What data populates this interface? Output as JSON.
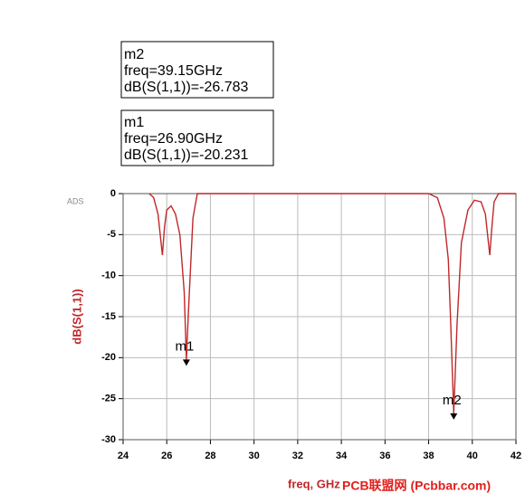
{
  "chart_data": {
    "type": "line",
    "corner_label": "ADS",
    "xlabel": "freq, GHz",
    "ylabel": "dB(S(1,1))",
    "watermark": "PCB联盟网 (Pcbbar.com)",
    "xlim": [
      24,
      42
    ],
    "xticks": [
      24,
      26,
      28,
      30,
      32,
      34,
      36,
      38,
      40,
      42
    ],
    "ylim": [
      -30,
      0
    ],
    "yticks": [
      0,
      -5,
      -10,
      -15,
      -20,
      -25,
      -30
    ],
    "grid": true,
    "series": [
      {
        "name": "dB(S(1,1))",
        "color": "#c0282a",
        "x": [
          25.2,
          25.4,
          25.6,
          25.8,
          25.9,
          26.0,
          26.2,
          26.4,
          26.6,
          26.8,
          26.9,
          27.0,
          27.2,
          27.4,
          28,
          30,
          32,
          34,
          36,
          38,
          38.4,
          38.7,
          38.9,
          39.0,
          39.15,
          39.3,
          39.5,
          39.8,
          40.1,
          40.4,
          40.6,
          40.8,
          40.9,
          41.0,
          41.2,
          42
        ],
        "values": [
          0,
          -0.5,
          -2.5,
          -7.5,
          -4,
          -2,
          -1.5,
          -2.5,
          -5,
          -12,
          -20.231,
          -14,
          -3,
          0,
          0,
          0,
          0,
          0,
          0,
          0,
          -0.5,
          -3,
          -8,
          -15,
          -26.783,
          -16,
          -6,
          -2,
          -0.8,
          -1,
          -2.5,
          -7.5,
          -4,
          -1,
          0,
          0
        ]
      }
    ],
    "markers": [
      {
        "name": "m2",
        "freq_label": "freq=39.15GHz",
        "value_label": "dB(S(1,1))=-26.783",
        "x": 39.15,
        "y": -26.783
      },
      {
        "name": "m1",
        "freq_label": "freq=26.90GHz",
        "value_label": "dB(S(1,1))=-20.231",
        "x": 26.9,
        "y": -20.231
      }
    ]
  }
}
